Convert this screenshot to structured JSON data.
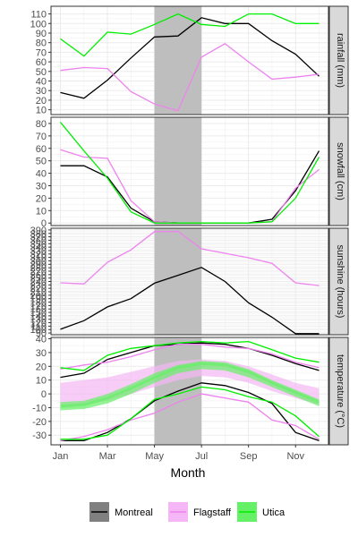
{
  "chart_data": {
    "type": "line",
    "xlabel": "Month",
    "x_ticks": [
      "Jan",
      "Mar",
      "May",
      "Jul",
      "Sep",
      "Nov"
    ],
    "x_tick_positions": [
      1,
      3,
      5,
      7,
      9,
      11
    ],
    "x_range": [
      0.6,
      12.4
    ],
    "highlight": {
      "from": 5,
      "to": 7,
      "color": "#bebebe"
    },
    "legend": {
      "position": "bottom",
      "entries": [
        {
          "name": "Montreal",
          "color": "#000000",
          "fill": "#808080"
        },
        {
          "name": "Flagstaff",
          "color": "#ee82ee",
          "fill": "#f4b6f4"
        },
        {
          "name": "Utica",
          "color": "#00ee00",
          "fill": "#66f066"
        }
      ]
    },
    "x": [
      1,
      2,
      3,
      4,
      5,
      6,
      7,
      8,
      9,
      10,
      11,
      12
    ],
    "panels": [
      {
        "strip": "rainfall (mm)",
        "ylim": [
          5,
          118
        ],
        "yticks": [
          10,
          20,
          30,
          40,
          50,
          60,
          70,
          80,
          90,
          100,
          110
        ],
        "series": [
          {
            "name": "Montreal",
            "values": [
              28,
              22,
              41,
              64,
              86,
              87,
              106,
              100,
              100,
              82,
              68,
              45
            ]
          },
          {
            "name": "Flagstaff",
            "values": [
              51,
              54,
              53,
              29,
              16,
              9,
              65,
              79,
              60,
              42,
              44,
              47
            ]
          },
          {
            "name": "Utica",
            "values": [
              84,
              66,
              91,
              89,
              99,
              110,
              99,
              97,
              110,
              110,
              100,
              100
            ]
          }
        ]
      },
      {
        "strip": "snowfall (cm)",
        "ylim": [
          -2,
          85
        ],
        "yticks": [
          0,
          10,
          20,
          30,
          40,
          50,
          60,
          70,
          80
        ],
        "series": [
          {
            "name": "Montreal",
            "values": [
              46,
              46,
              37,
              12,
              1,
              0,
              0,
              0,
              0,
              3,
              26,
              58
            ]
          },
          {
            "name": "Flagstaff",
            "values": [
              59,
              53,
              52,
              18,
              1,
              0,
              0,
              0,
              0,
              1,
              28,
              43
            ]
          },
          {
            "name": "Utica",
            "values": [
              81,
              58,
              36,
              9,
              0,
              0,
              0,
              0,
              0,
              1,
              20,
              53
            ]
          }
        ]
      },
      {
        "strip": "sunshine (hours)",
        "ylim": [
          85,
          395
        ],
        "yticks": [
          90,
          100,
          110,
          120,
          130,
          140,
          150,
          160,
          170,
          180,
          190,
          200,
          210,
          220,
          230,
          240,
          250,
          260,
          270,
          280,
          290,
          300,
          310,
          320,
          330,
          340,
          350,
          360,
          370,
          380,
          390
        ],
        "series": [
          {
            "name": "Montreal",
            "values": [
              101,
              126,
              166,
              190,
              235,
              258,
              281,
              240,
              178,
              136,
              88,
              88
            ]
          },
          {
            "name": "Flagstaff",
            "values": [
              236,
              233,
              296,
              332,
              385,
              386,
              335,
              322,
              309,
              293,
              236,
              228
            ]
          }
        ]
      },
      {
        "strip": "temperature (°C)",
        "ylim": [
          -37,
          41
        ],
        "yticks": [
          -30,
          -20,
          -10,
          0,
          10,
          20,
          30,
          40
        ],
        "bands": [
          {
            "name": "Flagstaff",
            "lower": [
              -10,
              -8,
              -5,
              0,
              5,
              10,
              13,
              12,
              8,
              2,
              -3,
              -8
            ],
            "upper": [
              8,
              10,
              12,
              16,
              20,
              24,
              25,
              24,
              20,
              14,
              8,
              4
            ]
          },
          {
            "name": "Utica",
            "lower": [
              -12,
              -11,
              -7,
              0,
              8,
              15,
              18,
              17,
              12,
              5,
              -2,
              -9
            ],
            "upper": [
              -6,
              -5,
              0,
              7,
              15,
              21,
              24,
              23,
              18,
              10,
              3,
              -4
            ]
          },
          {
            "name": "Utica",
            "lower": [
              -10,
              -9,
              -4,
              3,
              11,
              18,
              21,
              20,
              15,
              7,
              0,
              -7
            ],
            "upper": [
              -8,
              -7,
              -2,
              5,
              13,
              20,
              23,
              22,
              17,
              9,
              2,
              -5
            ]
          }
        ],
        "series": [
          {
            "name": "Montreal",
            "values": [
              12,
              15,
              25,
              30,
              35,
              36,
              37,
              36,
              33,
              28,
              22,
              17
            ]
          },
          {
            "name": "Montreal",
            "values": [
              -34,
              -34,
              -28,
              -18,
              -5,
              2,
              8,
              6,
              1,
              -7,
              -28,
              -34
            ]
          },
          {
            "name": "Flagstaff",
            "values": [
              18,
              21,
              23,
              27,
              32,
              36,
              36,
              34,
              33,
              29,
              23,
              19
            ]
          },
          {
            "name": "Flagstaff",
            "values": [
              -34,
              -31,
              -26,
              -19,
              -14,
              -6,
              0,
              -3,
              -6,
              -19,
              -23,
              -33
            ]
          },
          {
            "name": "Utica",
            "values": [
              19,
              17,
              28,
              33,
              35,
              37,
              38,
              37,
              38,
              32,
              26,
              23
            ]
          },
          {
            "name": "Utica",
            "values": [
              -33,
              -33,
              -30,
              -18,
              -4,
              0,
              5,
              3,
              -2,
              -6,
              -16,
              -31
            ]
          }
        ]
      }
    ]
  }
}
